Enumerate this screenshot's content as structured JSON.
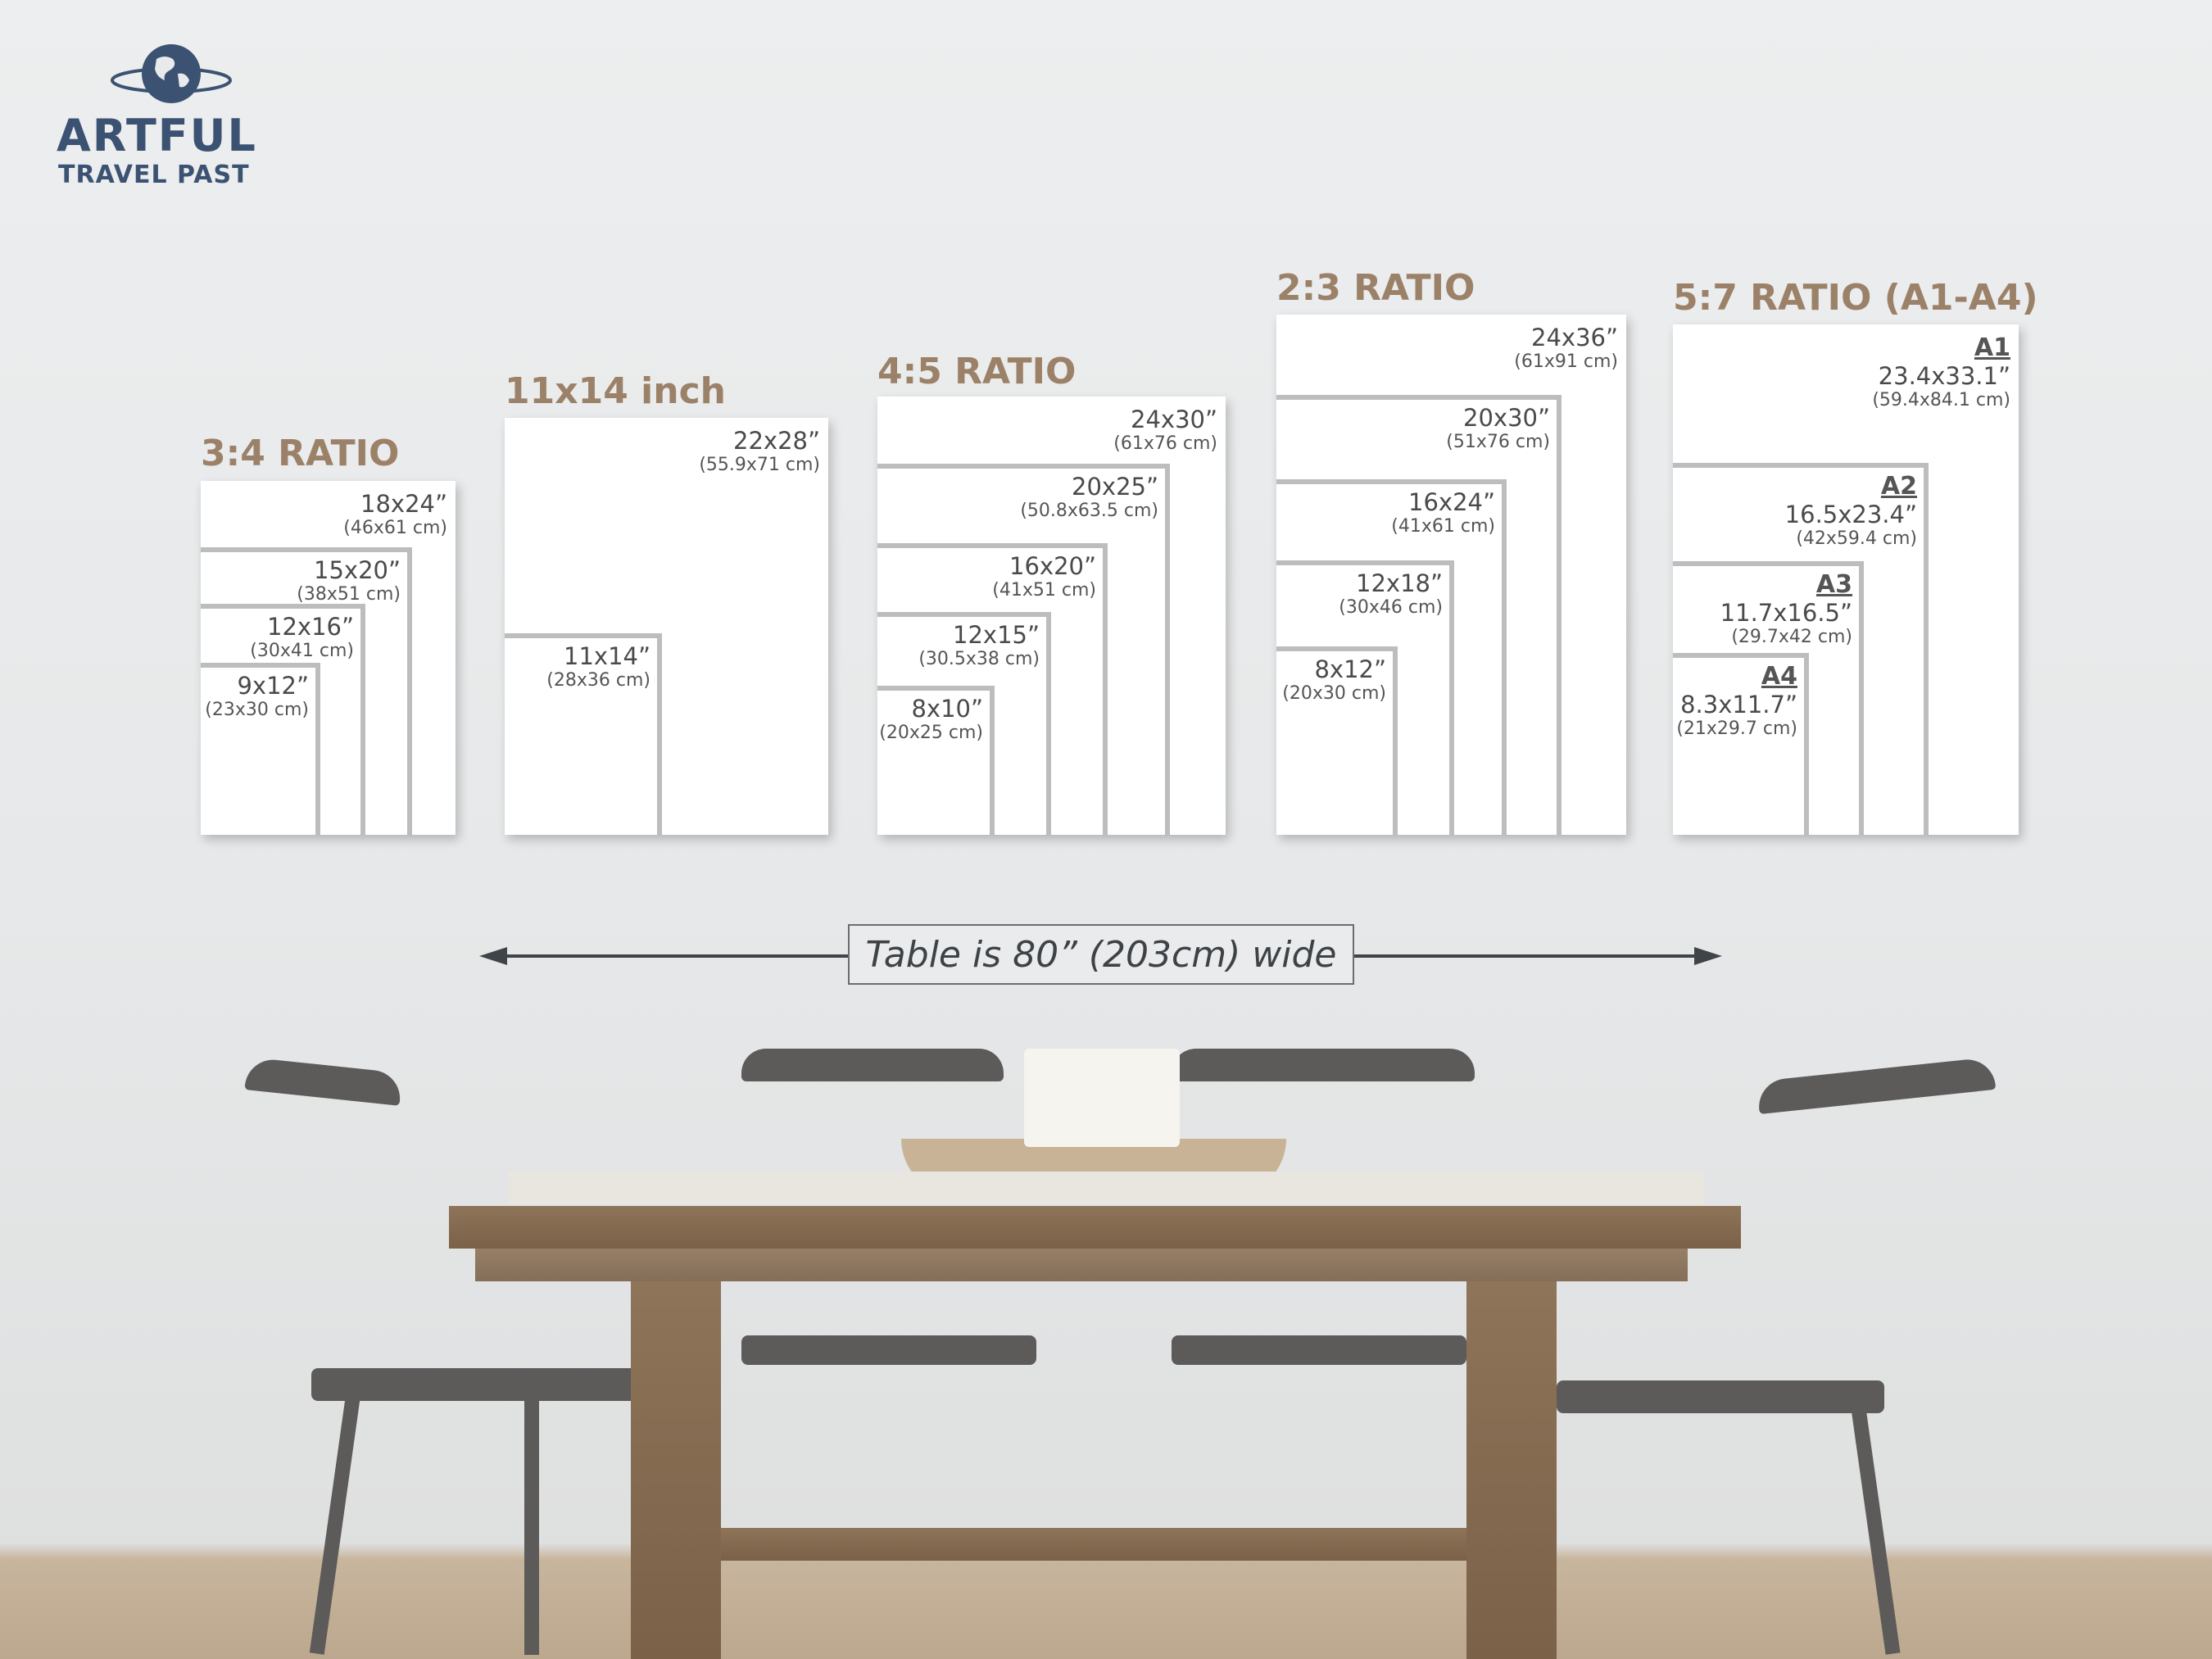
{
  "logo": {
    "name": "ARTFUL",
    "tagline": "TRAVEL PAST",
    "icon": "globe-icon",
    "color": "#3b5272"
  },
  "accent_color": "#9c8169",
  "panels": [
    {
      "title": "3:4 RATIO",
      "sizes": [
        {
          "inches": "18x24”",
          "cm": "(46x61 cm)"
        },
        {
          "inches": "15x20”",
          "cm": "(38x51 cm)"
        },
        {
          "inches": "12x16”",
          "cm": "(30x41 cm)"
        },
        {
          "inches": "9x12”",
          "cm": "(23x30 cm)"
        }
      ]
    },
    {
      "title": "11x14 inch",
      "sizes": [
        {
          "inches": "22x28”",
          "cm": "(55.9x71 cm)"
        },
        {
          "inches": "11x14”",
          "cm": "(28x36 cm)"
        }
      ]
    },
    {
      "title": "4:5 RATIO",
      "sizes": [
        {
          "inches": "24x30”",
          "cm": "(61x76 cm)"
        },
        {
          "inches": "20x25”",
          "cm": "(50.8x63.5 cm)"
        },
        {
          "inches": "16x20”",
          "cm": "(41x51 cm)"
        },
        {
          "inches": "12x15”",
          "cm": "(30.5x38 cm)"
        },
        {
          "inches": "8x10”",
          "cm": "(20x25 cm)"
        }
      ]
    },
    {
      "title": "2:3 RATIO",
      "sizes": [
        {
          "inches": "24x36”",
          "cm": "(61x91 cm)"
        },
        {
          "inches": "20x30”",
          "cm": "(51x76 cm)"
        },
        {
          "inches": "16x24”",
          "cm": "(41x61 cm)"
        },
        {
          "inches": "12x18”",
          "cm": "(30x46 cm)"
        },
        {
          "inches": "8x12”",
          "cm": "(20x30 cm)"
        }
      ]
    },
    {
      "title": "5:7 RATIO (A1-A4)",
      "sizes": [
        {
          "name": "A1",
          "inches": "23.4x33.1”",
          "cm": "(59.4x84.1 cm)"
        },
        {
          "name": "A2",
          "inches": "16.5x23.4”",
          "cm": "(42x59.4 cm)"
        },
        {
          "name": "A3",
          "inches": "11.7x16.5”",
          "cm": "(29.7x42 cm)"
        },
        {
          "name": "A4",
          "inches": "8.3x11.7”",
          "cm": "(21x29.7 cm)"
        }
      ]
    }
  ],
  "table_note": "Table is 80” (203cm) wide"
}
